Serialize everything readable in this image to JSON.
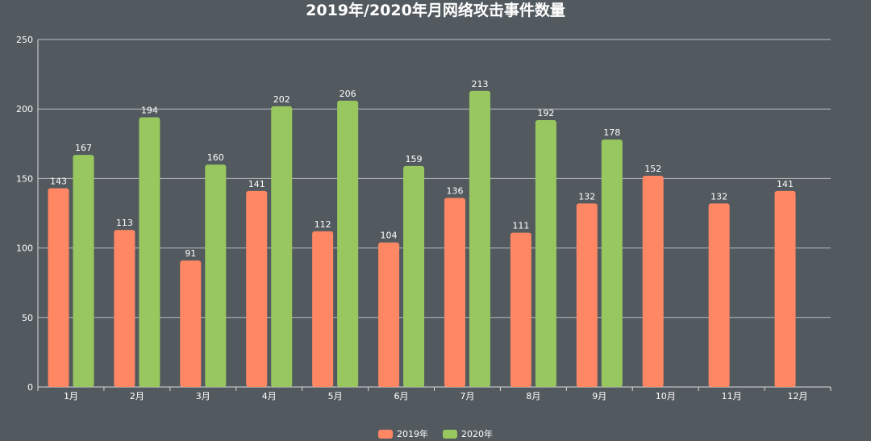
{
  "chart_data": {
    "type": "bar",
    "title": "2019年/2020年月网络攻击事件数量",
    "xlabel": "",
    "ylabel": "",
    "categories": [
      "1月",
      "2月",
      "3月",
      "4月",
      "5月",
      "6月",
      "7月",
      "8月",
      "9月",
      "10月",
      "11月",
      "12月"
    ],
    "series": [
      {
        "name": "2019年",
        "color": "#ff8763",
        "values": [
          143,
          113,
          91,
          141,
          112,
          104,
          136,
          111,
          132,
          152,
          132,
          141
        ]
      },
      {
        "name": "2020年",
        "color": "#98c75f",
        "values": [
          167,
          194,
          160,
          202,
          206,
          159,
          213,
          192,
          178,
          null,
          null,
          null
        ]
      }
    ],
    "ylim": [
      0,
      250
    ],
    "yticks": [
      0,
      50,
      100,
      150,
      200,
      250
    ],
    "grid": true,
    "legend_position": "bottom-center",
    "data_labels": true
  },
  "colors": {
    "background": "#535a5f",
    "text": "#ffffff",
    "grid": "#b9bcbf",
    "axis": "#d8dadc"
  }
}
